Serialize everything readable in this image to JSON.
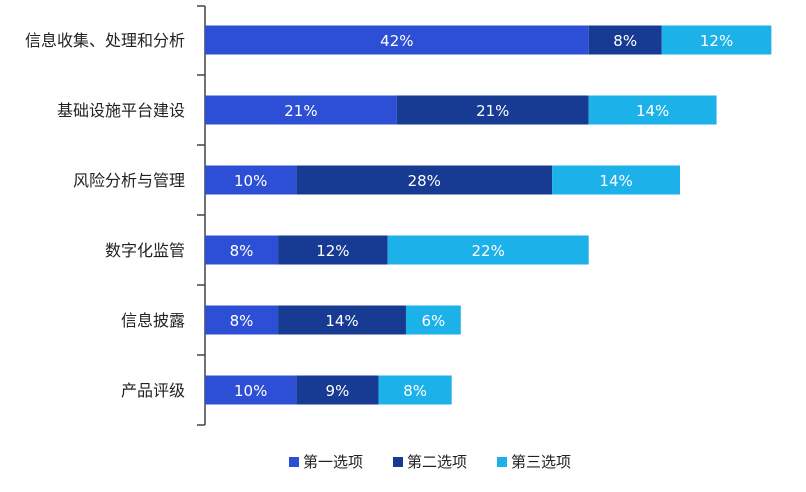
{
  "chart_data": {
    "type": "bar",
    "orientation": "horizontal",
    "stacked": true,
    "categories": [
      "信息收集、处理和分析",
      "基础设施平台建设",
      "风险分析与管理",
      "数字化监管",
      "信息披露",
      "产品评级"
    ],
    "series": [
      {
        "name": "第一选项",
        "color": "#2d4fd6",
        "values": [
          42,
          21,
          10,
          8,
          8,
          10
        ],
        "labels": [
          "42%",
          "21%",
          "10%",
          "8%",
          "8%",
          "10%"
        ]
      },
      {
        "name": "第二选项",
        "color": "#173a93",
        "values": [
          8,
          21,
          28,
          12,
          14,
          9
        ],
        "labels": [
          "8%",
          "21%",
          "28%",
          "12%",
          "14%",
          "9%"
        ]
      },
      {
        "name": "第三选项",
        "color": "#1cb1e8",
        "values": [
          12,
          14,
          14,
          22,
          6,
          8
        ],
        "labels": [
          "12%",
          "14%",
          "14%",
          "22%",
          "6%",
          "8%"
        ]
      }
    ],
    "xlim": [
      0,
      62
    ],
    "grid": false,
    "legend_position": "bottom-center",
    "title": "",
    "xlabel": "",
    "ylabel": ""
  }
}
